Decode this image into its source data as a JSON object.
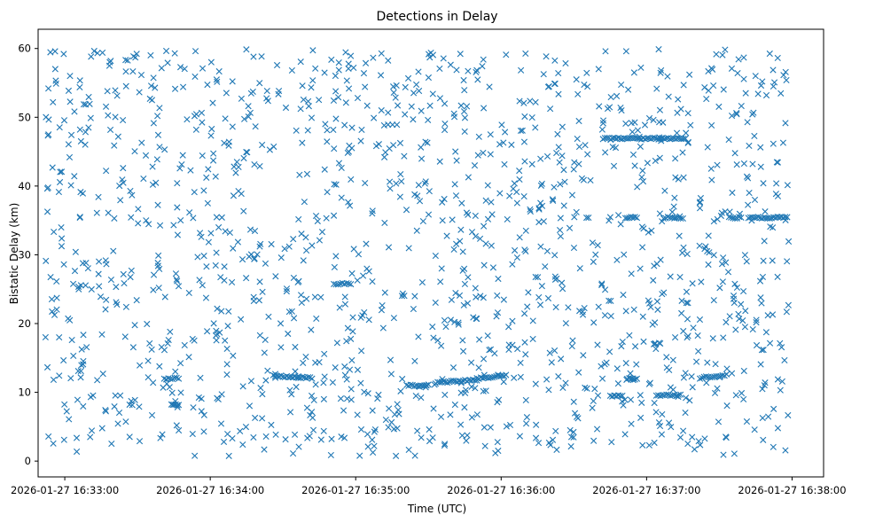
{
  "chart_data": {
    "type": "scatter",
    "title": "Detections in Delay",
    "xlabel": "Time (UTC)",
    "ylabel": "Bistatic Delay (km)",
    "marker": "x",
    "color": "#1f77b4",
    "x_unit": "UTC time",
    "xlim": [
      "2026-01-27 16:32:49",
      "2026-01-27 16:38:13"
    ],
    "ylim": [
      -2.3,
      62.8
    ],
    "x_ticks": [
      "2026-01-27 16:33:00",
      "2026-01-27 16:34:00",
      "2026-01-27 16:35:00",
      "2026-01-27 16:36:00",
      "2026-01-27 16:37:00",
      "2026-01-27 16:38:00"
    ],
    "y_ticks": [
      0,
      10,
      20,
      30,
      40,
      50,
      60
    ],
    "x_range": [
      "2026-01-27 16:32:52",
      "2026-01-27 16:37:59"
    ],
    "y_range": [
      0.7,
      59.9
    ],
    "approx_point_count": 1700,
    "background_distribution": "uniform",
    "dense_tracks": [
      {
        "x_start": "2026-01-27 16:33:41",
        "x_end": "2026-01-27 16:33:47",
        "y_start": 12.0,
        "y_end": 12.0
      },
      {
        "x_start": "2026-01-27 16:33:44",
        "x_end": "2026-01-27 16:33:47",
        "y_start": 8.2,
        "y_end": 8.2
      },
      {
        "x_start": "2026-01-27 16:34:26",
        "x_end": "2026-01-27 16:34:42",
        "y_start": 12.4,
        "y_end": 12.1
      },
      {
        "x_start": "2026-01-27 16:34:51",
        "x_end": "2026-01-27 16:34:58",
        "y_start": 25.8,
        "y_end": 25.8
      },
      {
        "x_start": "2026-01-27 16:35:21",
        "x_end": "2026-01-27 16:35:30",
        "y_start": 11.0,
        "y_end": 11.0
      },
      {
        "x_start": "2026-01-27 16:35:33",
        "x_end": "2026-01-27 16:35:50",
        "y_start": 11.4,
        "y_end": 11.8
      },
      {
        "x_start": "2026-01-27 16:35:50",
        "x_end": "2026-01-27 16:36:02",
        "y_start": 12.0,
        "y_end": 12.5
      },
      {
        "x_start": "2026-01-27 16:36:42",
        "x_end": "2026-01-27 16:37:16",
        "y_start": 46.9,
        "y_end": 46.9
      },
      {
        "x_start": "2026-01-27 16:36:52",
        "x_end": "2026-01-27 16:36:56",
        "y_start": 12.0,
        "y_end": 12.0
      },
      {
        "x_start": "2026-01-27 16:36:45",
        "x_end": "2026-01-27 16:36:50",
        "y_start": 9.5,
        "y_end": 9.5
      },
      {
        "x_start": "2026-01-27 16:37:04",
        "x_end": "2026-01-27 16:37:14",
        "y_start": 9.6,
        "y_end": 9.6
      },
      {
        "x_start": "2026-01-27 16:37:22",
        "x_end": "2026-01-27 16:37:33",
        "y_start": 12.1,
        "y_end": 12.5
      },
      {
        "x_start": "2026-01-27 16:36:52",
        "x_end": "2026-01-27 16:36:56",
        "y_start": 35.4,
        "y_end": 35.4
      },
      {
        "x_start": "2026-01-27 16:37:07",
        "x_end": "2026-01-27 16:37:15",
        "y_start": 35.4,
        "y_end": 35.4
      },
      {
        "x_start": "2026-01-27 16:37:34",
        "x_end": "2026-01-27 16:37:39",
        "y_start": 35.4,
        "y_end": 35.4
      },
      {
        "x_start": "2026-01-27 16:37:42",
        "x_end": "2026-01-27 16:37:58",
        "y_start": 35.4,
        "y_end": 35.4
      }
    ],
    "grid": false,
    "legend": "none"
  }
}
